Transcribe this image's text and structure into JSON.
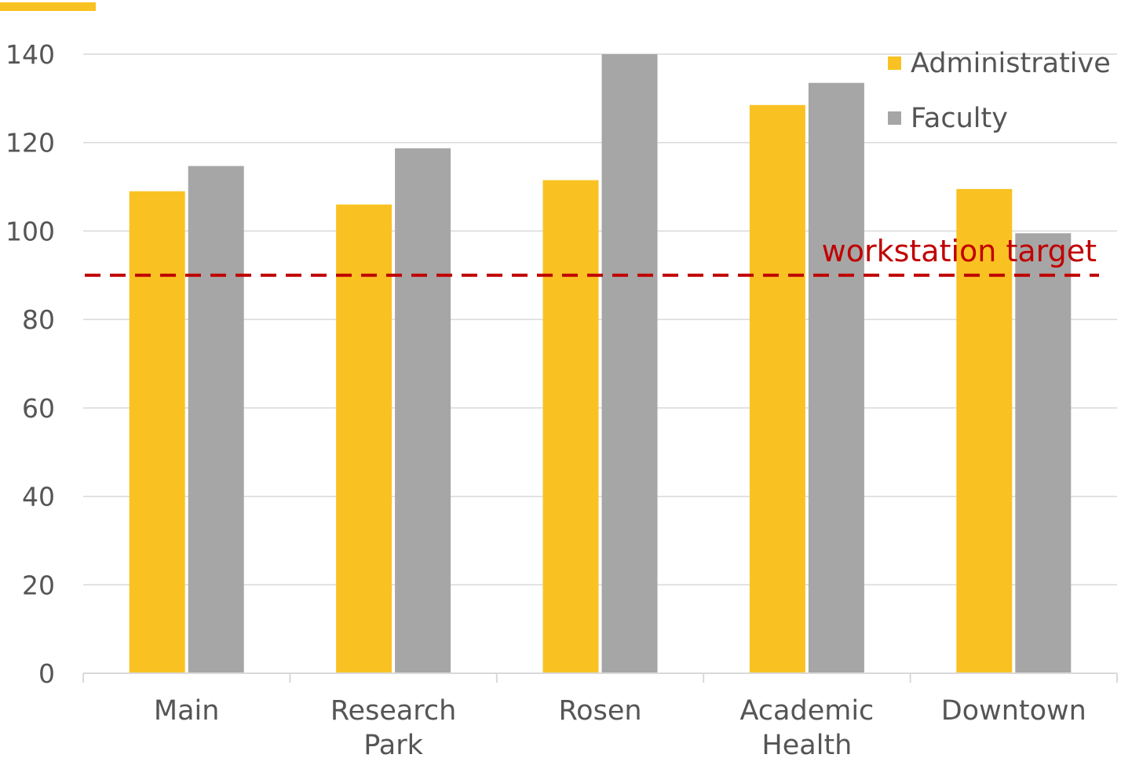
{
  "chart_data": {
    "type": "bar",
    "categories": [
      [
        "Main"
      ],
      [
        "Research",
        "Park"
      ],
      [
        "Rosen"
      ],
      [
        "Academic",
        "Health"
      ],
      [
        "Downtown"
      ]
    ],
    "series": [
      {
        "name": "Administrative",
        "color": "#f9c222",
        "values": [
          109,
          106,
          111.5,
          128.5,
          109.5
        ]
      },
      {
        "name": "Faculty",
        "color": "#a6a6a6",
        "values": [
          114.7,
          118.7,
          140,
          133.5,
          99.5
        ]
      }
    ],
    "ylim": [
      0,
      140
    ],
    "yticks": [
      0,
      20,
      40,
      60,
      80,
      100,
      120,
      140
    ],
    "grid": true,
    "legend_position": "top-right",
    "reference_line": {
      "label": "workstation target",
      "value": 90,
      "color": "#c00000",
      "style": "dashed"
    },
    "accent_color": "#f9c222"
  }
}
